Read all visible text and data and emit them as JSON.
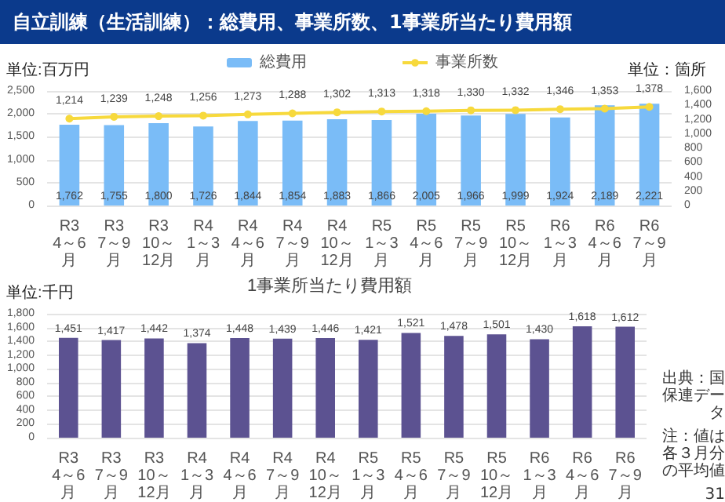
{
  "chart_data": [
    {
      "type": "bar",
      "title": "自立訓練（生活訓練）：総費用、事業所数、1事業所当たり費用額",
      "ylabel": "単位:百万円",
      "y2label": "単位：箇所",
      "categories": [
        "R3\n4～6月",
        "R3\n7～9月",
        "R3\n10～12月",
        "R4\n1～3月",
        "R4\n4～6月",
        "R4\n7～9月",
        "R4\n10～12月",
        "R5\n1～3月",
        "R5\n4～6月",
        "R5\n7～9月",
        "R5\n10～12月",
        "R6\n1～3月",
        "R6\n4～6月",
        "R6\n7～9月"
      ],
      "series": [
        {
          "name": "総費用",
          "color": "#7abcf7",
          "values": [
            1762,
            1755,
            1800,
            1726,
            1844,
            1854,
            1883,
            1866,
            2005,
            1966,
            1999,
            1924,
            2189,
            2221
          ],
          "value_labels": [
            "1,762",
            "1,755",
            "1,800",
            "1,726",
            "1,844",
            "1,854",
            "1,883",
            "1,866",
            "2,005",
            "1,966",
            "1,999",
            "1,924",
            "2,189",
            "2,221"
          ]
        },
        {
          "name": "事業所数",
          "type": "line",
          "axis": "y2",
          "color": "#f7d93c",
          "values": [
            1214,
            1239,
            1248,
            1256,
            1273,
            1288,
            1302,
            1313,
            1318,
            1330,
            1332,
            1346,
            1353,
            1378
          ],
          "value_labels": [
            "1,214",
            "1,239",
            "1,248",
            "1,256",
            "1,273",
            "1,288",
            "1,302",
            "1,313",
            "1,318",
            "1,330",
            "1,332",
            "1,346",
            "1,353",
            "1,378"
          ]
        }
      ],
      "ylim": [
        0,
        2500
      ],
      "yticks": [
        0,
        500,
        {
          "value": 1000,
          "label": "1,000"
        },
        {
          "value": 1500,
          "label": "1,500"
        },
        {
          "value": 2000,
          "label": "2,000"
        },
        {
          "value": 2500,
          "label": "2,500"
        }
      ],
      "y2lim": [
        0,
        1600
      ],
      "y2ticks": [
        0,
        200,
        400,
        600,
        800,
        {
          "value": 1000,
          "label": "1,000"
        },
        {
          "value": 1200,
          "label": "1,200"
        },
        {
          "value": 1400,
          "label": "1,400"
        },
        {
          "value": 1600,
          "label": "1,600"
        }
      ],
      "grid": "y",
      "legend": "top",
      "marker": "circle"
    },
    {
      "type": "bar",
      "title": "1事業所当たり費用額",
      "ylabel": "単位:千円",
      "categories": [
        "R3\n4～6月",
        "R3\n7～9月",
        "R3\n10～12月",
        "R4\n1～3月",
        "R4\n4～6月",
        "R4\n7～9月",
        "R4\n10～12月",
        "R5\n1～3月",
        "R5\n4～6月",
        "R5\n7～9月",
        "R5\n10～12月",
        "R6\n1～3月",
        "R6\n4～6月",
        "R6\n7～9月"
      ],
      "series": [
        {
          "color": "#5c5291",
          "values": [
            1451,
            1417,
            1442,
            1374,
            1448,
            1439,
            1446,
            1421,
            1521,
            1478,
            1501,
            1430,
            1618,
            1612
          ],
          "value_labels": [
            "1,451",
            "1,417",
            "1,442",
            "1,374",
            "1,448",
            "1,439",
            "1,446",
            "1,421",
            "1,521",
            "1,478",
            "1,501",
            "1,430",
            "1,618",
            "1,612"
          ]
        }
      ],
      "ylim": [
        0,
        1800
      ],
      "yticks": [
        0,
        200,
        400,
        600,
        800,
        {
          "value": 1000,
          "label": "1,000"
        },
        {
          "value": 1200,
          "label": "1,200"
        },
        {
          "value": 1400,
          "label": "1,400"
        },
        {
          "value": 1600,
          "label": "1,600"
        },
        {
          "value": 1800,
          "label": "1,800"
        }
      ],
      "grid": "y",
      "legend": false,
      "annotations": [
        "出典：国保連データ",
        "注：値は各３月分の平均値",
        "31"
      ]
    }
  ]
}
